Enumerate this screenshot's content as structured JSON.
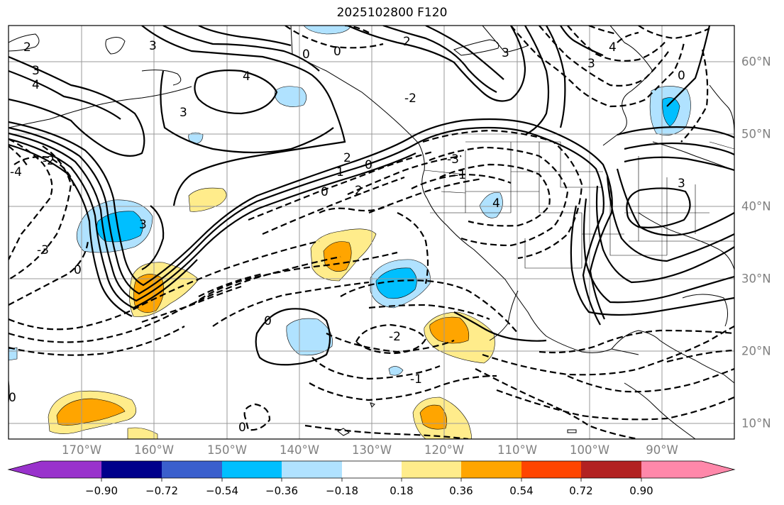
{
  "title": "2025102800 F120",
  "latitude_labels": [
    "60°N",
    "50°N",
    "40°N",
    "30°N",
    "20°N",
    "10°N"
  ],
  "longitude_labels": [
    "170°W",
    "160°W",
    "150°W",
    "140°W",
    "130°W",
    "120°W",
    "110°W",
    "100°W",
    "90°W"
  ],
  "contour_labels": {
    "a": "3",
    "b": "4",
    "c": "3",
    "d": "4",
    "e": "2",
    "f": "0",
    "g": "0",
    "h": "4",
    "i": "3",
    "j": "0",
    "k": "3",
    "l": "4",
    "m": "3",
    "n": "0",
    "o": "3",
    "p": "2",
    "q": "1",
    "r": "0",
    "s": "0",
    "t": "2",
    "u": "-2",
    "v": "-3",
    "w": "4",
    "x": "-2",
    "y": "-1",
    "z": "-3",
    "aa": "-4",
    "ab": "0",
    "ac": "3",
    "ad": "0",
    "ae": "-2",
    "af": "-1",
    "ag": "0",
    "ah": "0",
    "ai": "0",
    "aj": "-3",
    "ak": "2"
  },
  "colorbar": {
    "tick_labels": [
      "−0.90",
      "−0.72",
      "−0.54",
      "−0.36",
      "−0.18",
      "0.18",
      "0.36",
      "0.54",
      "0.72",
      "0.90"
    ],
    "colors": [
      "#9932cc",
      "#00008b",
      "#3a5fcd",
      "#00bfff",
      "#b0e2ff",
      "#ffffff",
      "#ffec8b",
      "#ffa500",
      "#ff4500",
      "#b22222",
      "#ff88aa"
    ]
  },
  "colors": {
    "strong_negative": "#00bfff",
    "weak_negative": "#b0e2ff",
    "weak_positive": "#ffec8b",
    "strong_positive": "#ffa500",
    "contour": "#000000",
    "grid": "#999999"
  }
}
